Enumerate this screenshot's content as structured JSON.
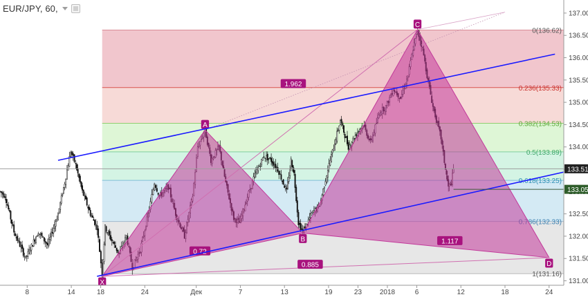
{
  "header": {
    "symbol": "EUR/JPY, 60,"
  },
  "chart_data": {
    "type": "candlestick",
    "symbol": "EUR/JPY",
    "interval": "60",
    "ylim": [
      130.9,
      137.2
    ],
    "y_ticks": [
      "131.00",
      "131.50",
      "132.00",
      "132.50",
      "133.00",
      "133.50",
      "134.00",
      "134.50",
      "135.00",
      "135.50",
      "136.00",
      "136.50",
      "137.00"
    ],
    "x_ticks": [
      {
        "label": "8",
        "day": 8
      },
      {
        "label": "14",
        "day": 14
      },
      {
        "label": "18",
        "day": 18
      },
      {
        "label": "24",
        "day": 24
      },
      {
        "label": "Дек",
        "day": 31
      },
      {
        "label": "7",
        "day": 37
      },
      {
        "label": "13",
        "day": 43
      },
      {
        "label": "19",
        "day": 49
      },
      {
        "label": "23",
        "day": 53
      },
      {
        "label": "2018",
        "day": 57
      },
      {
        "label": "6",
        "day": 61
      },
      {
        "label": "12",
        "day": 67
      },
      {
        "label": "18",
        "day": 73
      },
      {
        "label": "24",
        "day": 79
      }
    ],
    "x_range": [
      4.3,
      81
    ],
    "fib_levels": [
      {
        "ratio": "0",
        "price": 136.62,
        "label": "0(136.62)",
        "fill": "#efbcc4",
        "line": "#d98b96",
        "text": "#555555"
      },
      {
        "ratio": "0.236",
        "price": 135.33,
        "label": "0.236(135.33)",
        "fill": "#f6d3d0",
        "line": "#d9534f",
        "text": "#c9302c"
      },
      {
        "ratio": "0.382",
        "price": 134.53,
        "label": "0.382(134.53)",
        "fill": "#d8f5cf",
        "line": "#8fcf6f",
        "text": "#5ea83b"
      },
      {
        "ratio": "0.5",
        "price": 133.89,
        "label": "0.5(133.89)",
        "fill": "#cdf2df",
        "line": "#7fcf9f",
        "text": "#3fa86b"
      },
      {
        "ratio": "0.618",
        "price": 133.25,
        "label": "0.618(133.25)",
        "fill": "#cce6f2",
        "line": "#7fbfd8",
        "text": "#2e8fb5"
      },
      {
        "ratio": "0.786",
        "price": 132.33,
        "label": "0.786(132.33)",
        "fill": "#e3e3e3",
        "line": "#9fb8cc",
        "text": "#3a7fb0"
      },
      {
        "ratio": "1",
        "price": 131.16,
        "label": "1(131.16)",
        "fill": "#e3e3e3",
        "line": "#bbbbbb",
        "text": "#555555"
      }
    ],
    "fib_x_range": [
      18.2,
      81
    ],
    "price_markers": [
      {
        "price": 133.51,
        "label": "133.51",
        "bg": "#222222",
        "line": "#9e9e9e"
      },
      {
        "price": 133.05,
        "label": "133.05",
        "bg": "#2e5d2a",
        "line": "#3c5a3a"
      }
    ],
    "pattern_points": [
      {
        "label": "X",
        "day": 18.2,
        "price": 131.1
      },
      {
        "label": "A",
        "day": 32.2,
        "price": 134.38
      },
      {
        "label": "B",
        "day": 45.5,
        "price": 132.07
      },
      {
        "label": "C",
        "day": 61.1,
        "price": 136.63
      },
      {
        "label": "D",
        "day": 79.0,
        "price": 131.52
      }
    ],
    "ratio_labels": [
      {
        "label": "1.962",
        "day": 44.2,
        "price": 135.42
      },
      {
        "label": "0.72",
        "day": 31.5,
        "price": 131.67
      },
      {
        "label": "1.117",
        "day": 65.5,
        "price": 131.9
      },
      {
        "label": "0.885",
        "day": 46.5,
        "price": 131.37
      }
    ],
    "trend_lines": [
      {
        "from": [
          17.5,
          131.1
        ],
        "to": [
          83,
          133.51
        ],
        "color": "#1a1aff"
      },
      {
        "from": [
          12.2,
          133.7
        ],
        "to": [
          79.8,
          136.08
        ],
        "color": "#1a1aff"
      }
    ],
    "candle_waypoints": [
      [
        4.3,
        133.0
      ],
      [
        5,
        132.9
      ],
      [
        6.2,
        132.1
      ],
      [
        7.8,
        131.5
      ],
      [
        9.5,
        132.1
      ],
      [
        10.8,
        131.8
      ],
      [
        12.2,
        132.5
      ],
      [
        13.1,
        133.2
      ],
      [
        13.9,
        133.9
      ],
      [
        14.6,
        133.6
      ],
      [
        15.5,
        133.0
      ],
      [
        16.6,
        132.5
      ],
      [
        17.5,
        132.2
      ],
      [
        18.2,
        131.15
      ],
      [
        18.6,
        132.2
      ],
      [
        19.2,
        132.0
      ],
      [
        20.5,
        131.6
      ],
      [
        21.5,
        132.0
      ],
      [
        22.3,
        131.3
      ],
      [
        23.4,
        131.7
      ],
      [
        24.6,
        132.6
      ],
      [
        25.3,
        133.2
      ],
      [
        26,
        132.9
      ],
      [
        27.2,
        133.1
      ],
      [
        28.2,
        132.5
      ],
      [
        29.4,
        132.0
      ],
      [
        30.5,
        132.9
      ],
      [
        31.2,
        134.0
      ],
      [
        32.2,
        134.38
      ],
      [
        33,
        133.7
      ],
      [
        34.1,
        134.0
      ],
      [
        35,
        133.2
      ],
      [
        36.1,
        132.4
      ],
      [
        36.9,
        132.3
      ],
      [
        37.8,
        132.8
      ],
      [
        38.8,
        133.3
      ],
      [
        40.2,
        133.8
      ],
      [
        41.2,
        133.7
      ],
      [
        42.1,
        133.5
      ],
      [
        43.3,
        133.0
      ],
      [
        43.9,
        133.7
      ],
      [
        44.3,
        133.4
      ],
      [
        44.9,
        132.3
      ],
      [
        45.5,
        132.1
      ],
      [
        46.7,
        132.5
      ],
      [
        47.8,
        132.7
      ],
      [
        48.9,
        133.5
      ],
      [
        49.7,
        134.0
      ],
      [
        50.6,
        134.6
      ],
      [
        51.7,
        134.0
      ],
      [
        52.8,
        134.3
      ],
      [
        53.7,
        134.5
      ],
      [
        54.7,
        134.1
      ],
      [
        56,
        134.8
      ],
      [
        56.8,
        134.9
      ],
      [
        57.8,
        135.3
      ],
      [
        58.8,
        135.1
      ],
      [
        59.8,
        135.6
      ],
      [
        60.5,
        136.2
      ],
      [
        61.1,
        136.6
      ],
      [
        61.8,
        136.2
      ],
      [
        62.4,
        135.6
      ],
      [
        63.2,
        134.9
      ],
      [
        64.3,
        134.2
      ],
      [
        64.9,
        133.5
      ],
      [
        65.3,
        133.1
      ],
      [
        65.7,
        133.2
      ],
      [
        66,
        133.5
      ]
    ]
  }
}
